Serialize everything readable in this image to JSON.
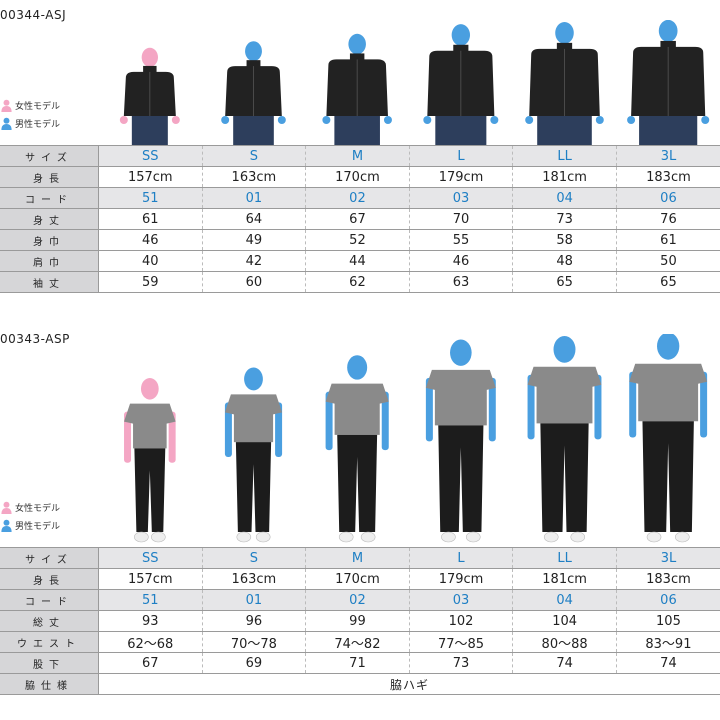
{
  "colors": {
    "female": "#f4a6c4",
    "male": "#4a9fe0",
    "code_blue": "#1e7fc4",
    "header_gray": "#d6d6d8",
    "jacket": "#222222",
    "tshirt": "#8a8a8a",
    "pants": "#1c1c1c"
  },
  "legend": {
    "female_label": "女性モデル",
    "male_label": "男性モデル",
    "female_icon": "person-icon",
    "male_icon": "person-icon"
  },
  "top": {
    "code": "00344-ASJ",
    "rows": [
      {
        "label": "サイズ",
        "values": [
          "SS",
          "S",
          "M",
          "L",
          "LL",
          "3L"
        ],
        "highlight": true,
        "blue": true
      },
      {
        "label": "身長",
        "values": [
          "157cm",
          "163cm",
          "170cm",
          "179cm",
          "181cm",
          "183cm"
        ]
      },
      {
        "label": "コード",
        "values": [
          "51",
          "01",
          "02",
          "03",
          "04",
          "06"
        ],
        "highlight": true,
        "blue": true
      },
      {
        "label": "身丈",
        "values": [
          "61",
          "64",
          "67",
          "70",
          "73",
          "76"
        ]
      },
      {
        "label": "身巾",
        "values": [
          "46",
          "49",
          "52",
          "55",
          "58",
          "61"
        ]
      },
      {
        "label": "肩巾",
        "values": [
          "40",
          "42",
          "44",
          "46",
          "48",
          "50"
        ]
      },
      {
        "label": "袖丈",
        "values": [
          "59",
          "60",
          "62",
          "63",
          "65",
          "65"
        ]
      }
    ]
  },
  "bottom": {
    "code": "00343-ASP",
    "rows": [
      {
        "label": "サイズ",
        "values": [
          "SS",
          "S",
          "M",
          "L",
          "LL",
          "3L"
        ],
        "highlight": true,
        "blue": true
      },
      {
        "label": "身長",
        "values": [
          "157cm",
          "163cm",
          "170cm",
          "179cm",
          "181cm",
          "183cm"
        ]
      },
      {
        "label": "コード",
        "values": [
          "51",
          "01",
          "02",
          "03",
          "04",
          "06"
        ],
        "highlight": true,
        "blue": true
      },
      {
        "label": "総丈",
        "values": [
          "93",
          "96",
          "99",
          "102",
          "104",
          "105"
        ]
      },
      {
        "label": "ウエスト",
        "values": [
          "62〜68",
          "70〜78",
          "74〜82",
          "77〜85",
          "80〜88",
          "83〜91"
        ]
      },
      {
        "label": "股下",
        "values": [
          "67",
          "69",
          "71",
          "73",
          "74",
          "74"
        ]
      },
      {
        "label": "脇仕様",
        "span_value": "脇ハギ"
      }
    ]
  }
}
